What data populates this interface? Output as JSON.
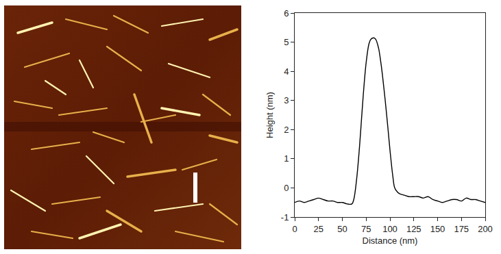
{
  "chart_data": {
    "type": "line",
    "xlabel": "Distance (nm)",
    "ylabel": "Height (nm)",
    "x": [
      0,
      5,
      10,
      15,
      20,
      25,
      30,
      35,
      40,
      45,
      50,
      55,
      60,
      62,
      65,
      68,
      70,
      72,
      75,
      78,
      80,
      83,
      85,
      88,
      90,
      92,
      95,
      98,
      100,
      103,
      105,
      108,
      110,
      115,
      120,
      125,
      130,
      135,
      140,
      145,
      150,
      155,
      160,
      165,
      170,
      175,
      180,
      185,
      190,
      195,
      200
    ],
    "values": [
      -0.5,
      -0.45,
      -0.5,
      -0.45,
      -0.4,
      -0.35,
      -0.4,
      -0.45,
      -0.45,
      -0.5,
      -0.5,
      -0.55,
      -0.55,
      -0.4,
      0.3,
      1.4,
      2.3,
      3.2,
      4.3,
      4.95,
      5.1,
      5.15,
      5.1,
      4.8,
      4.4,
      3.9,
      3.0,
      2.0,
      1.3,
      0.4,
      0.0,
      -0.15,
      -0.2,
      -0.25,
      -0.3,
      -0.3,
      -0.3,
      -0.35,
      -0.3,
      -0.4,
      -0.45,
      -0.5,
      -0.45,
      -0.4,
      -0.4,
      -0.45,
      -0.35,
      -0.4,
      -0.4,
      -0.45,
      -0.5
    ],
    "color": "#000000",
    "xlim": [
      0,
      200
    ],
    "xticks": [
      0,
      25,
      50,
      75,
      100,
      125,
      150,
      175,
      200
    ],
    "ylim": [
      -1,
      6
    ],
    "yticks": [
      -1,
      0,
      1,
      2,
      3,
      4,
      5,
      6
    ],
    "grid": false
  }
}
